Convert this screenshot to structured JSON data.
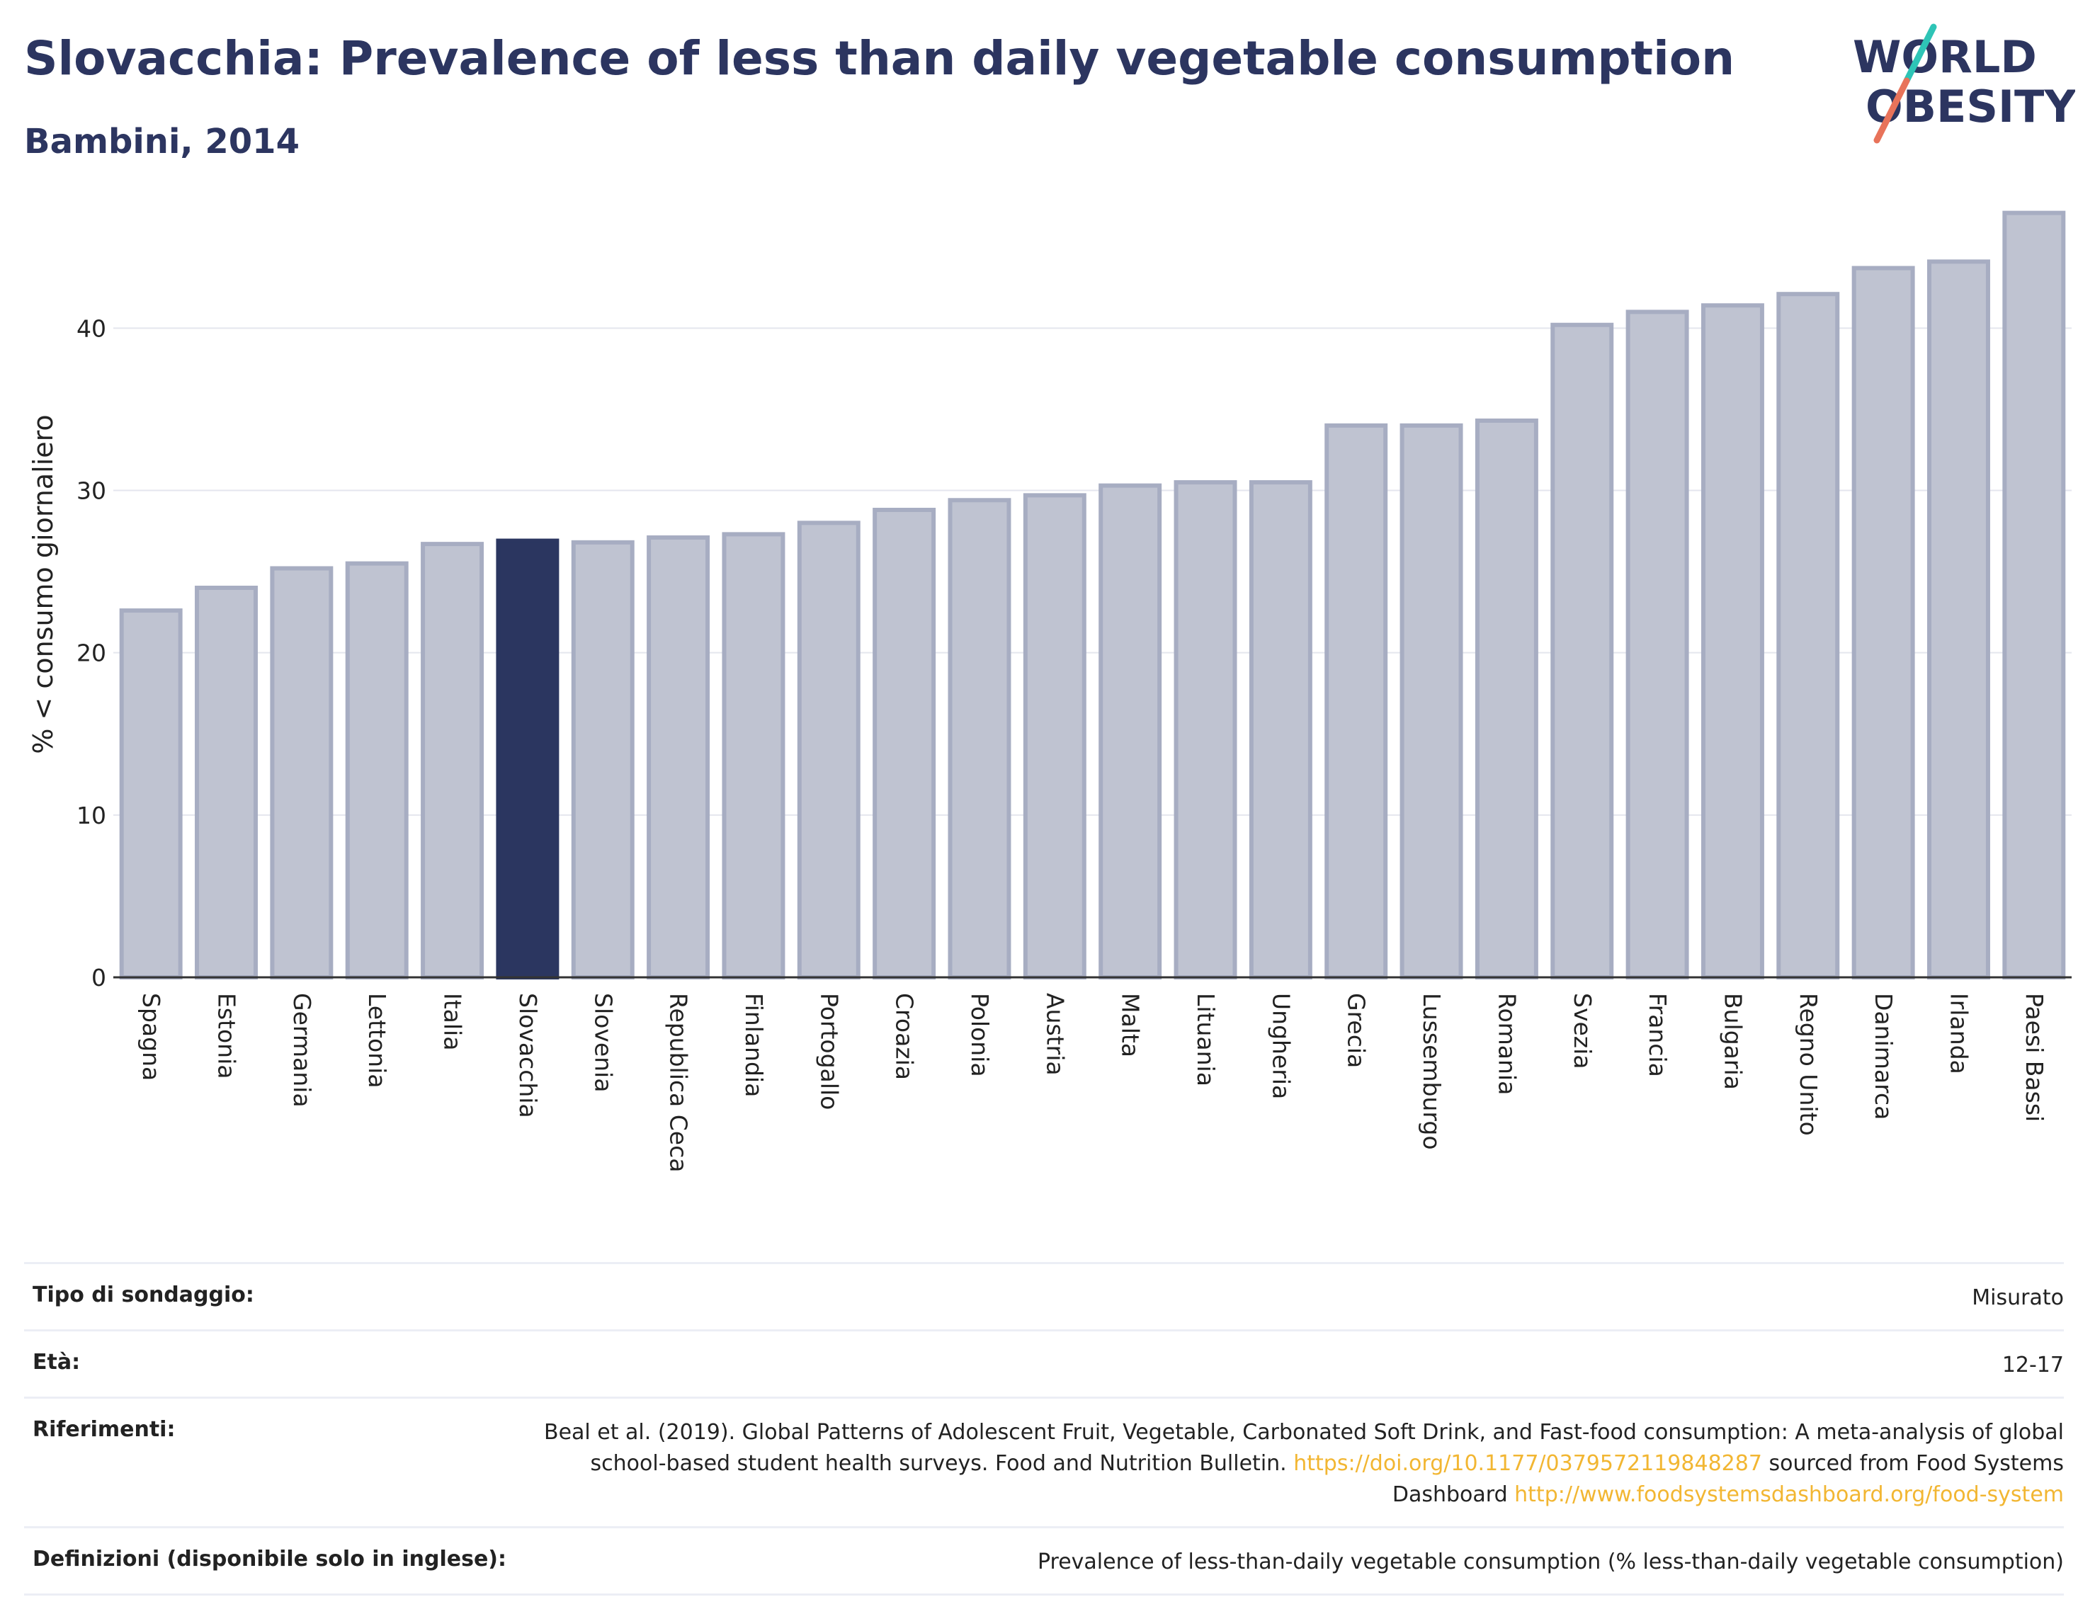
{
  "title": "Slovacchia: Prevalence of less than daily vegetable consumption",
  "subtitle": "Bambini, 2014",
  "logo": {
    "line1": "WORLD",
    "line2": "OBESITY",
    "accent_colors": [
      "#2ec4b6",
      "#e8735a"
    ]
  },
  "chart_data": {
    "type": "bar",
    "ylabel": "% < consumo giornaliero",
    "ylim": [
      0,
      48
    ],
    "yticks": [
      0,
      10,
      20,
      30,
      40
    ],
    "grid": true,
    "categories": [
      "Spagna",
      "Estonia",
      "Germania",
      "Lettonia",
      "Italia",
      "Slovacchia",
      "Slovenia",
      "Republica Ceca",
      "Finlandia",
      "Portogallo",
      "Croazia",
      "Polonia",
      "Austria",
      "Malta",
      "Lituania",
      "Ungheria",
      "Grecia",
      "Lussemburgo",
      "Romania",
      "Svezia",
      "Francia",
      "Bulgaria",
      "Regno Unito",
      "Danimarca",
      "Irlanda",
      "Paesi Bassi"
    ],
    "values": [
      22.6,
      24.0,
      25.2,
      25.5,
      26.7,
      26.9,
      26.8,
      27.1,
      27.3,
      28.0,
      28.8,
      29.4,
      29.7,
      30.3,
      30.5,
      30.5,
      34.0,
      34.0,
      34.3,
      40.2,
      41.0,
      41.4,
      42.1,
      43.7,
      44.1,
      47.1
    ],
    "highlight": "Slovacchia",
    "colors": {
      "default_fill": "#bfc3d1",
      "default_stroke": "#a7adc2",
      "highlight": "#2b3660"
    }
  },
  "meta": [
    {
      "key": "Tipo di sondaggio:",
      "value": "Misurato"
    },
    {
      "key": "Età:",
      "value": "12-17"
    },
    {
      "key": "Riferimenti:",
      "value_parts": [
        {
          "text": "Beal et al. (2019). Global Patterns of Adolescent Fruit, Vegetable, Carbonated Soft Drink, and Fast-food consumption: A meta-analysis of global school-based student health surveys. Food and Nutrition Bulletin. "
        },
        {
          "text": "https://doi.org/10.1177/0379572119848287",
          "link": true
        },
        {
          "text": " sourced from Food Systems Dashboard "
        },
        {
          "text": "http://www.foodsystemsdashboard.org/food-system",
          "link": true
        }
      ]
    },
    {
      "key": "Definizioni (disponibile solo in inglese):",
      "value": "Prevalence of less-than-daily vegetable consumption (% less-than-daily vegetable consumption)"
    }
  ]
}
